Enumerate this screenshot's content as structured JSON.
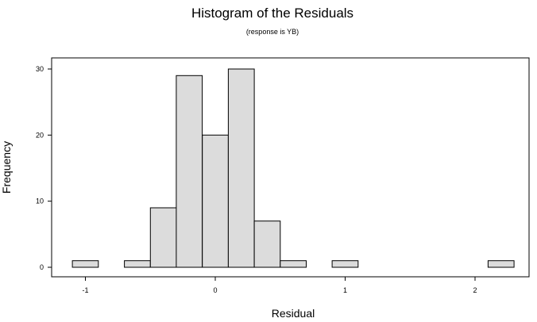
{
  "chart_data": {
    "type": "bar",
    "title": "Histogram of the Residuals",
    "subtitle": "(response is YB)",
    "xlabel": "Residual",
    "ylabel": "Frequency",
    "bin_width": 0.2,
    "bins": [
      {
        "center": -1.0,
        "count": 1
      },
      {
        "center": -0.8,
        "count": 0
      },
      {
        "center": -0.6,
        "count": 1
      },
      {
        "center": -0.4,
        "count": 9
      },
      {
        "center": -0.2,
        "count": 29
      },
      {
        "center": 0.0,
        "count": 20
      },
      {
        "center": 0.2,
        "count": 30
      },
      {
        "center": 0.4,
        "count": 7
      },
      {
        "center": 0.6,
        "count": 1
      },
      {
        "center": 0.8,
        "count": 0
      },
      {
        "center": 1.0,
        "count": 1
      },
      {
        "center": 1.2,
        "count": 0
      },
      {
        "center": 1.4,
        "count": 0
      },
      {
        "center": 1.6,
        "count": 0
      },
      {
        "center": 1.8,
        "count": 0
      },
      {
        "center": 2.0,
        "count": 0
      },
      {
        "center": 2.2,
        "count": 1
      }
    ],
    "xlim": [
      -1.2,
      2.4
    ],
    "ylim": [
      0,
      31.4
    ],
    "x_ticks": [
      {
        "value": -1,
        "label": "-1"
      },
      {
        "value": 0,
        "label": "0"
      },
      {
        "value": 1,
        "label": "1"
      },
      {
        "value": 2,
        "label": "2"
      }
    ],
    "y_ticks": [
      {
        "value": 0,
        "label": "0"
      },
      {
        "value": 10,
        "label": "10"
      },
      {
        "value": 20,
        "label": "20"
      },
      {
        "value": 30,
        "label": "30"
      }
    ],
    "grid": false,
    "legend": "none",
    "colors": {
      "bar_fill": "#dcdcdc",
      "bar_stroke": "#000000",
      "frame": "#000000"
    }
  }
}
